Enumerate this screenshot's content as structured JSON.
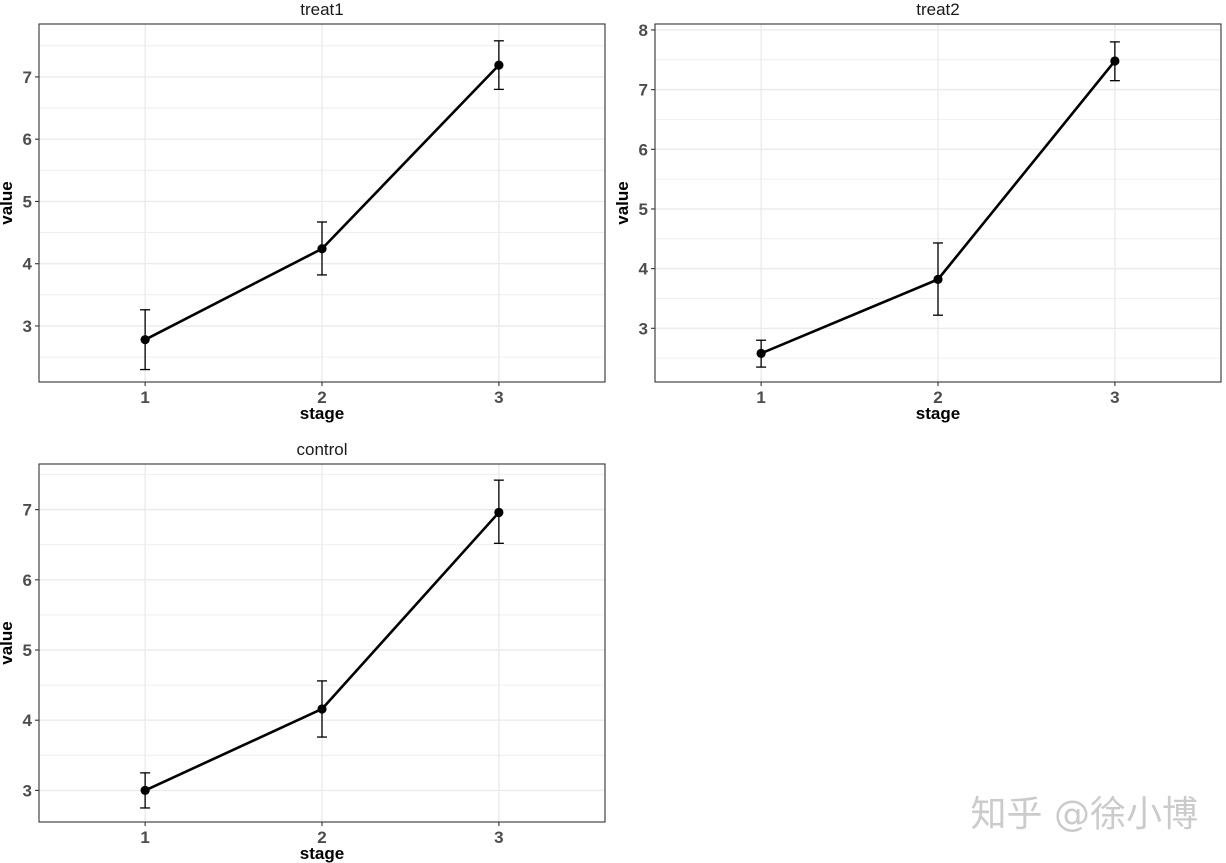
{
  "watermark": "知乎 @徐小博",
  "colors": {
    "line": "#000000",
    "grid": "#ebebeb",
    "panel_border": "#333333",
    "tick_label": "#4d4d4d"
  },
  "chart_data": [
    {
      "type": "line",
      "title": "treat1",
      "xlabel": "stage",
      "ylabel": "value",
      "x": [
        1,
        2,
        3
      ],
      "values": [
        2.78,
        4.24,
        7.19
      ],
      "error_low": [
        2.3,
        3.82,
        6.8
      ],
      "error_high": [
        3.26,
        4.67,
        7.58
      ],
      "xlim": [
        0.4,
        3.6
      ],
      "ylim": [
        2.1,
        7.85
      ],
      "yticks": [
        3,
        4,
        5,
        6,
        7
      ],
      "grid": true,
      "error_bars": true
    },
    {
      "type": "line",
      "title": "treat2",
      "xlabel": "stage",
      "ylabel": "value",
      "x": [
        1,
        2,
        3
      ],
      "values": [
        2.58,
        3.82,
        7.48
      ],
      "error_low": [
        2.35,
        3.22,
        7.15
      ],
      "error_high": [
        2.8,
        4.43,
        7.8
      ],
      "xlim": [
        0.4,
        3.6
      ],
      "ylim": [
        2.1,
        8.1
      ],
      "yticks": [
        3,
        4,
        5,
        6,
        7,
        8
      ],
      "grid": true,
      "error_bars": true
    },
    {
      "type": "line",
      "title": "control",
      "xlabel": "stage",
      "ylabel": "value",
      "x": [
        1,
        2,
        3
      ],
      "values": [
        3.0,
        4.16,
        6.96
      ],
      "error_low": [
        2.75,
        3.76,
        6.52
      ],
      "error_high": [
        3.25,
        4.56,
        7.42
      ],
      "xlim": [
        0.4,
        3.6
      ],
      "ylim": [
        2.55,
        7.65
      ],
      "yticks": [
        3,
        4,
        5,
        6,
        7
      ],
      "grid": true,
      "error_bars": true
    }
  ]
}
